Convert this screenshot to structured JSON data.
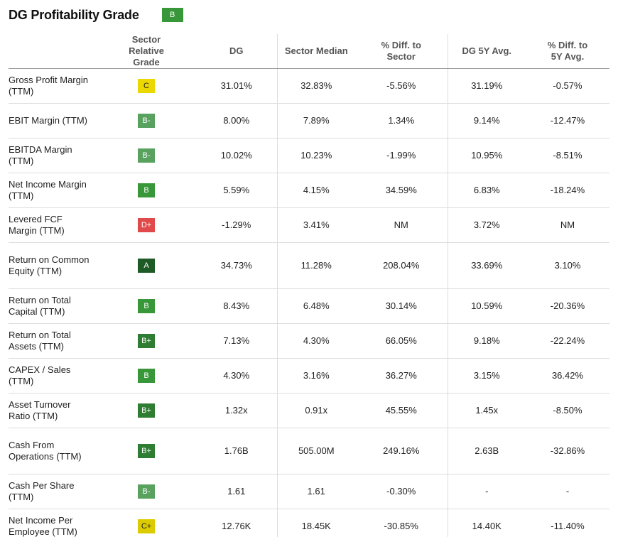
{
  "header": {
    "title": "DG Profitability Grade",
    "overall_grade": "B"
  },
  "colors": {
    "A": "#1d5a25",
    "B+": "#2e7d32",
    "B": "#389738",
    "B-": "#58a15e",
    "C+": "#dccb00",
    "C": "#ebd800",
    "D+": "#e04a4a"
  },
  "columns": {
    "grade": "Sector Relative Grade",
    "dg": "DG",
    "median": "Sector Median",
    "diff_sector": "% Diff. to Sector",
    "avg5y": "DG 5Y Avg.",
    "diff_5y": "% Diff. to 5Y Avg."
  },
  "rows": [
    {
      "label": "Gross Profit Margin (TTM)",
      "grade": "C",
      "dg": "31.01%",
      "median": "32.83%",
      "diff_sector": "-5.56%",
      "avg5y": "31.19%",
      "diff_5y": "-0.57%"
    },
    {
      "label": "EBIT Margin (TTM)",
      "grade": "B-",
      "dg": "8.00%",
      "median": "7.89%",
      "diff_sector": "1.34%",
      "avg5y": "9.14%",
      "diff_5y": "-12.47%"
    },
    {
      "label": "EBITDA Margin (TTM)",
      "grade": "B-",
      "dg": "10.02%",
      "median": "10.23%",
      "diff_sector": "-1.99%",
      "avg5y": "10.95%",
      "diff_5y": "-8.51%"
    },
    {
      "label": "Net Income Margin (TTM)",
      "grade": "B",
      "dg": "5.59%",
      "median": "4.15%",
      "diff_sector": "34.59%",
      "avg5y": "6.83%",
      "diff_5y": "-18.24%"
    },
    {
      "label": "Levered FCF Margin (TTM)",
      "grade": "D+",
      "dg": "-1.29%",
      "median": "3.41%",
      "diff_sector": "NM",
      "avg5y": "3.72%",
      "diff_5y": "NM"
    },
    {
      "label": "Return on Common Equity (TTM)",
      "grade": "A",
      "dg": "34.73%",
      "median": "11.28%",
      "diff_sector": "208.04%",
      "avg5y": "33.69%",
      "diff_5y": "3.10%"
    },
    {
      "label": "Return on Total Capital (TTM)",
      "grade": "B",
      "dg": "8.43%",
      "median": "6.48%",
      "diff_sector": "30.14%",
      "avg5y": "10.59%",
      "diff_5y": "-20.36%"
    },
    {
      "label": "Return on Total Assets (TTM)",
      "grade": "B+",
      "dg": "7.13%",
      "median": "4.30%",
      "diff_sector": "66.05%",
      "avg5y": "9.18%",
      "diff_5y": "-22.24%"
    },
    {
      "label": "CAPEX / Sales (TTM)",
      "grade": "B",
      "dg": "4.30%",
      "median": "3.16%",
      "diff_sector": "36.27%",
      "avg5y": "3.15%",
      "diff_5y": "36.42%"
    },
    {
      "label": "Asset Turnover Ratio (TTM)",
      "grade": "B+",
      "dg": "1.32x",
      "median": "0.91x",
      "diff_sector": "45.55%",
      "avg5y": "1.45x",
      "diff_5y": "-8.50%"
    },
    {
      "label": "Cash From Operations (TTM)",
      "grade": "B+",
      "dg": "1.76B",
      "median": "505.00M",
      "diff_sector": "249.16%",
      "avg5y": "2.63B",
      "diff_5y": "-32.86%"
    },
    {
      "label": "Cash Per Share (TTM)",
      "grade": "B-",
      "dg": "1.61",
      "median": "1.61",
      "diff_sector": "-0.30%",
      "avg5y": "-",
      "diff_5y": "-"
    },
    {
      "label": "Net Income Per Employee (TTM)",
      "grade": "C+",
      "dg": "12.76K",
      "median": "18.45K",
      "diff_sector": "-30.85%",
      "avg5y": "14.40K",
      "diff_5y": "-11.40%"
    }
  ]
}
